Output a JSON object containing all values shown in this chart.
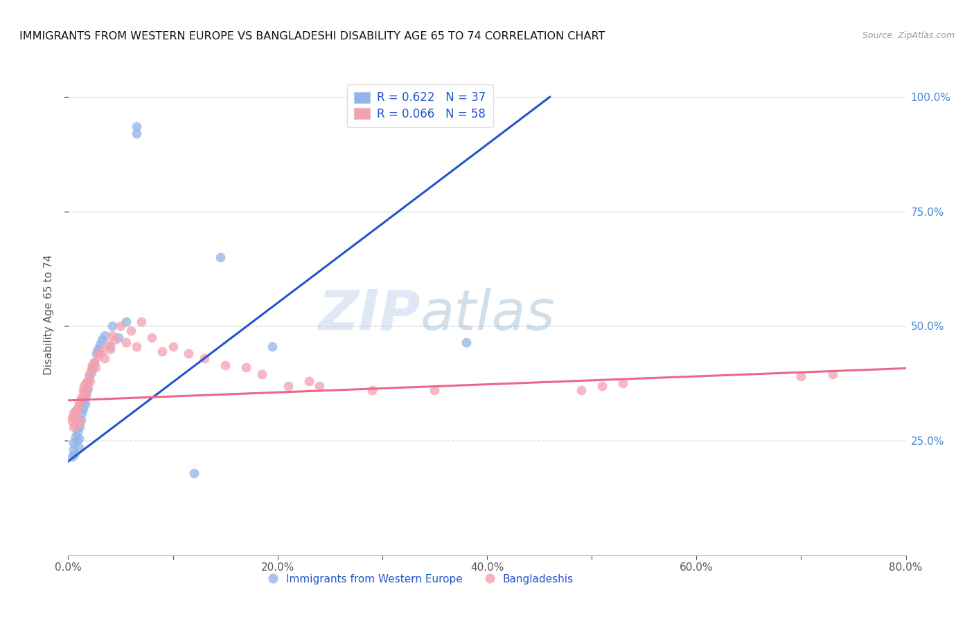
{
  "title": "IMMIGRANTS FROM WESTERN EUROPE VS BANGLADESHI DISABILITY AGE 65 TO 74 CORRELATION CHART",
  "source": "Source: ZipAtlas.com",
  "ylabel": "Disability Age 65 to 74",
  "xlim": [
    0.0,
    0.8
  ],
  "ylim": [
    0.0,
    1.05
  ],
  "xtick_labels": [
    "0.0%",
    "",
    "20.0%",
    "",
    "40.0%",
    "",
    "60.0%",
    "",
    "80.0%"
  ],
  "xtick_vals": [
    0.0,
    0.1,
    0.2,
    0.3,
    0.4,
    0.5,
    0.6,
    0.7,
    0.8
  ],
  "ytick_labels": [
    "25.0%",
    "50.0%",
    "75.0%",
    "100.0%"
  ],
  "ytick_vals": [
    0.25,
    0.5,
    0.75,
    1.0
  ],
  "blue_color": "#92b4e8",
  "pink_color": "#f4a0b0",
  "blue_line_color": "#2255cc",
  "pink_line_color": "#ee6688",
  "right_tick_color": "#4488cc",
  "legend_line1": "R = 0.622   N = 37",
  "legend_line2": "R = 0.066   N = 58",
  "blue_scatter_x": [
    0.004,
    0.005,
    0.005,
    0.006,
    0.007,
    0.008,
    0.009,
    0.01,
    0.01,
    0.011,
    0.012,
    0.013,
    0.014,
    0.015,
    0.016,
    0.017,
    0.018,
    0.018,
    0.02,
    0.022,
    0.023,
    0.025,
    0.027,
    0.028,
    0.03,
    0.032,
    0.035,
    0.04,
    0.042,
    0.048,
    0.055,
    0.065,
    0.065,
    0.12,
    0.145,
    0.195,
    0.38
  ],
  "blue_scatter_y": [
    0.215,
    0.23,
    0.245,
    0.22,
    0.26,
    0.25,
    0.27,
    0.235,
    0.255,
    0.28,
    0.295,
    0.31,
    0.32,
    0.34,
    0.33,
    0.35,
    0.36,
    0.375,
    0.39,
    0.4,
    0.41,
    0.42,
    0.44,
    0.45,
    0.46,
    0.47,
    0.48,
    0.455,
    0.5,
    0.475,
    0.51,
    0.92,
    0.935,
    0.18,
    0.65,
    0.455,
    0.465
  ],
  "pink_scatter_x": [
    0.003,
    0.004,
    0.005,
    0.005,
    0.006,
    0.007,
    0.007,
    0.008,
    0.009,
    0.01,
    0.01,
    0.011,
    0.012,
    0.013,
    0.014,
    0.015,
    0.015,
    0.016,
    0.017,
    0.018,
    0.019,
    0.02,
    0.021,
    0.022,
    0.023,
    0.025,
    0.026,
    0.028,
    0.03,
    0.032,
    0.035,
    0.038,
    0.04,
    0.042,
    0.045,
    0.05,
    0.055,
    0.06,
    0.065,
    0.07,
    0.08,
    0.09,
    0.1,
    0.115,
    0.13,
    0.15,
    0.17,
    0.185,
    0.21,
    0.23,
    0.24,
    0.29,
    0.35,
    0.49,
    0.51,
    0.53,
    0.7,
    0.73
  ],
  "pink_scatter_y": [
    0.295,
    0.3,
    0.28,
    0.31,
    0.305,
    0.315,
    0.285,
    0.32,
    0.3,
    0.335,
    0.325,
    0.29,
    0.34,
    0.345,
    0.36,
    0.37,
    0.355,
    0.35,
    0.375,
    0.38,
    0.365,
    0.395,
    0.38,
    0.405,
    0.415,
    0.42,
    0.41,
    0.435,
    0.44,
    0.445,
    0.43,
    0.46,
    0.45,
    0.48,
    0.47,
    0.5,
    0.465,
    0.49,
    0.455,
    0.51,
    0.475,
    0.445,
    0.455,
    0.44,
    0.43,
    0.415,
    0.41,
    0.395,
    0.37,
    0.38,
    0.37,
    0.36,
    0.36,
    0.36,
    0.37,
    0.375,
    0.39,
    0.395
  ],
  "blue_line_x": [
    0.0,
    0.46
  ],
  "blue_line_y": [
    0.205,
    1.0
  ],
  "pink_line_x": [
    0.0,
    0.8
  ],
  "pink_line_y": [
    0.338,
    0.408
  ],
  "watermark_zip": "ZIP",
  "watermark_atlas": "atlas"
}
